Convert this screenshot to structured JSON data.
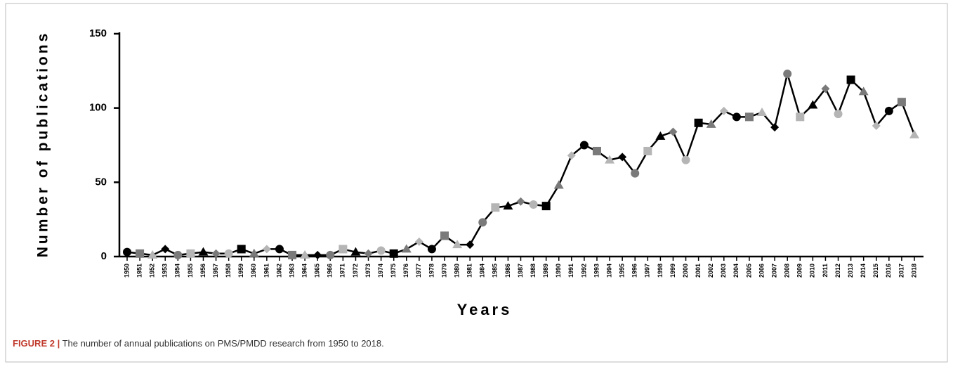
{
  "chart_data": {
    "type": "line",
    "xlabel": "Years",
    "ylabel": "Number of publications",
    "caption_label": "FIGURE 2 |",
    "caption": "The number of annual publications on PMS/PMDD research from 1950 to 2018.",
    "categories": [
      "1950",
      "1951",
      "1952",
      "1953",
      "1954",
      "1955",
      "1956",
      "1957",
      "1958",
      "1959",
      "1960",
      "1961",
      "1962",
      "1963",
      "1964",
      "1965",
      "1966",
      "1971",
      "1972",
      "1973",
      "1974",
      "1975",
      "1976",
      "1977",
      "1978",
      "1979",
      "1980",
      "1981",
      "1984",
      "1985",
      "1986",
      "1987",
      "1988",
      "1989",
      "1990",
      "1991",
      "1992",
      "1993",
      "1994",
      "1995",
      "1996",
      "1997",
      "1998",
      "1999",
      "2000",
      "2001",
      "2002",
      "2003",
      "2004",
      "2005",
      "2006",
      "2007",
      "2008",
      "2009",
      "2010",
      "2011",
      "2012",
      "2013",
      "2014",
      "2015",
      "2016",
      "2017",
      "2018"
    ],
    "values": [
      3,
      2,
      1,
      5,
      1,
      2,
      3,
      2,
      2,
      5,
      2,
      5,
      5,
      1,
      1,
      1,
      1,
      5,
      3,
      2,
      4,
      2,
      5,
      10,
      5,
      14,
      8,
      8,
      23,
      33,
      34,
      37,
      35,
      34,
      48,
      68,
      75,
      71,
      65,
      67,
      56,
      71,
      81,
      84,
      65,
      90,
      89,
      98,
      94,
      94,
      97,
      87,
      123,
      94,
      102,
      113,
      96,
      119,
      111,
      88,
      98,
      104,
      82
    ],
    "color": "#000000",
    "marker_colors": [
      "#000000",
      "#7a7a7a",
      "#b5b5b5"
    ],
    "ylim": [
      0,
      150
    ],
    "yticks": [
      0,
      50,
      100,
      150
    ]
  }
}
